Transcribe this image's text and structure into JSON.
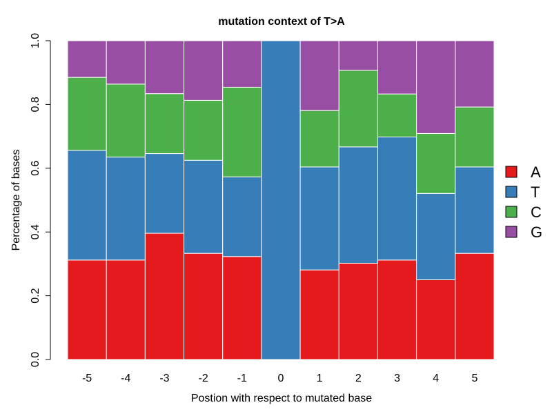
{
  "chart_data": {
    "type": "bar",
    "stacked": true,
    "title": "mutation context of T>A",
    "xlabel": "Postion with respect to mutated base",
    "ylabel": "Percentage of bases",
    "categories": [
      "-5",
      "-4",
      "-3",
      "-2",
      "-1",
      "0",
      "1",
      "2",
      "3",
      "4",
      "5"
    ],
    "ylim": [
      0,
      1
    ],
    "yticks": [
      "0.0",
      "0.2",
      "0.4",
      "0.6",
      "0.8",
      "1.0"
    ],
    "legend_position": "right",
    "grid": false,
    "series": [
      {
        "name": "A",
        "color": "#e41a1c",
        "values": [
          0.312,
          0.312,
          0.396,
          0.333,
          0.323,
          0.0,
          0.281,
          0.302,
          0.312,
          0.25,
          0.333
        ]
      },
      {
        "name": "T",
        "color": "#377eb8",
        "values": [
          0.344,
          0.323,
          0.25,
          0.292,
          0.25,
          1.0,
          0.323,
          0.365,
          0.386,
          0.271,
          0.271
        ]
      },
      {
        "name": "C",
        "color": "#4daf4a",
        "values": [
          0.229,
          0.229,
          0.188,
          0.188,
          0.281,
          0.0,
          0.177,
          0.24,
          0.135,
          0.188,
          0.188
        ]
      },
      {
        "name": "G",
        "color": "#984ea3",
        "values": [
          0.115,
          0.136,
          0.166,
          0.187,
          0.146,
          0.0,
          0.219,
          0.093,
          0.167,
          0.291,
          0.208
        ]
      }
    ]
  }
}
